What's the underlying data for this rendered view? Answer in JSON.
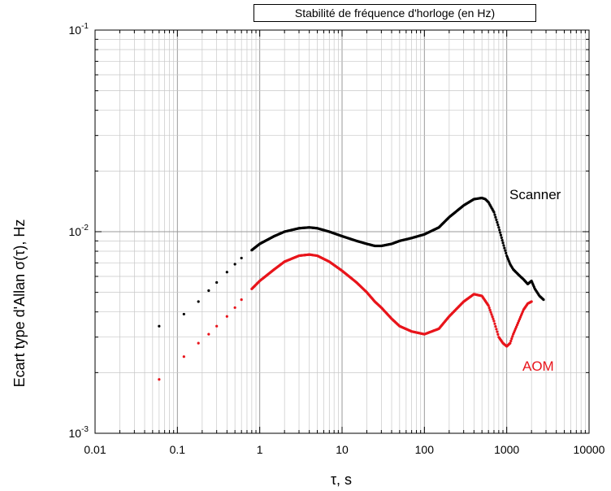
{
  "chart_data": {
    "type": "scatter",
    "title": "Stabilité de fréquence d'horloge (en Hz)",
    "xlabel": "τ, s",
    "ylabel": "Ecart type d'Allan σ(τ), Hz",
    "xscale": "log",
    "yscale": "log",
    "xlim": [
      0.01,
      10000
    ],
    "ylim": [
      0.001,
      0.1
    ],
    "grid": true,
    "xticks": [
      "0.01",
      "0.1",
      "1",
      "10",
      "100",
      "1000",
      "10000"
    ],
    "yticks": [
      {
        "value": 0.001,
        "base": "10",
        "exp": "-3"
      },
      {
        "value": 0.01,
        "base": "10",
        "exp": "-2"
      },
      {
        "value": 0.1,
        "base": "10",
        "exp": "-1"
      }
    ],
    "series": [
      {
        "name": "Scanner",
        "color": "#000000",
        "label_position": "right, above curve",
        "x": [
          0.06,
          0.12,
          0.18,
          0.24,
          0.3,
          0.4,
          0.5,
          0.6,
          0.8,
          1,
          1.5,
          2,
          3,
          4,
          5,
          7,
          10,
          15,
          20,
          25,
          30,
          40,
          50,
          70,
          100,
          150,
          200,
          300,
          400,
          500,
          550,
          600,
          700,
          800,
          900,
          1000,
          1100,
          1200,
          1400,
          1600,
          1800,
          2000,
          2200,
          2500,
          2800
        ],
        "y": [
          0.0034,
          0.0039,
          0.0045,
          0.0051,
          0.0056,
          0.0063,
          0.0069,
          0.0074,
          0.0081,
          0.0087,
          0.0095,
          0.01,
          0.0104,
          0.0105,
          0.0104,
          0.01,
          0.0095,
          0.009,
          0.0087,
          0.0085,
          0.0085,
          0.0087,
          0.009,
          0.0093,
          0.0097,
          0.0105,
          0.0118,
          0.0135,
          0.0145,
          0.0147,
          0.0145,
          0.014,
          0.0125,
          0.0105,
          0.0088,
          0.0076,
          0.0069,
          0.0065,
          0.0061,
          0.0058,
          0.0055,
          0.0057,
          0.0052,
          0.0048,
          0.0046
        ]
      },
      {
        "name": "AOM",
        "color": "#e8141b",
        "label_position": "right, below curve",
        "x": [
          0.06,
          0.12,
          0.18,
          0.24,
          0.3,
          0.4,
          0.5,
          0.6,
          0.8,
          1,
          1.5,
          2,
          3,
          4,
          5,
          7,
          10,
          15,
          20,
          25,
          30,
          40,
          50,
          70,
          100,
          150,
          200,
          300,
          400,
          500,
          600,
          700,
          800,
          900,
          1000,
          1100,
          1200,
          1400,
          1600,
          1800,
          2000
        ],
        "y": [
          0.00185,
          0.0024,
          0.0028,
          0.0031,
          0.0034,
          0.0038,
          0.0042,
          0.0046,
          0.0052,
          0.0057,
          0.0065,
          0.0071,
          0.0076,
          0.0077,
          0.0076,
          0.0071,
          0.0064,
          0.0056,
          0.005,
          0.0045,
          0.0042,
          0.0037,
          0.0034,
          0.0032,
          0.0031,
          0.0033,
          0.0038,
          0.0045,
          0.0049,
          0.0048,
          0.0043,
          0.0036,
          0.003,
          0.0028,
          0.0027,
          0.0028,
          0.0031,
          0.0036,
          0.0041,
          0.0044,
          0.0045
        ]
      }
    ]
  }
}
